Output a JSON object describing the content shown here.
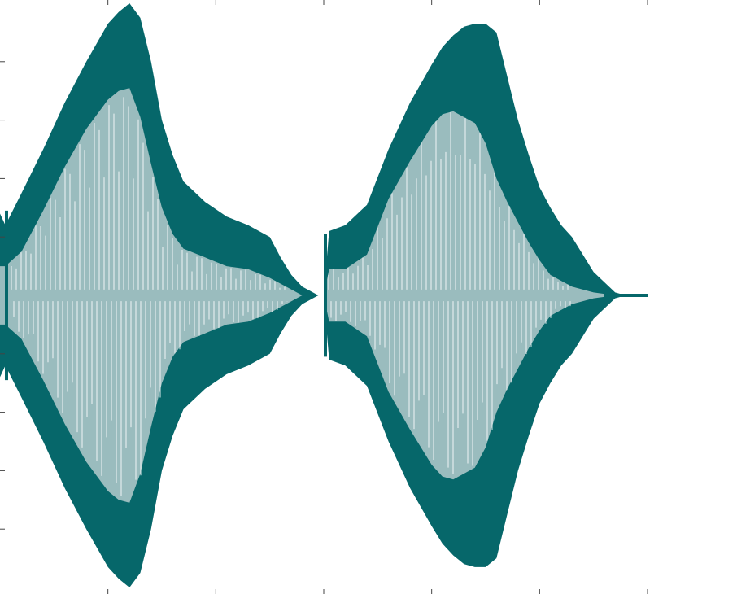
{
  "chart_data": {
    "type": "area",
    "title": "",
    "xlabel": "",
    "ylabel": "",
    "grid": false,
    "legend": "none",
    "xlim": [
      0,
      6
    ],
    "ylim": [
      -1,
      1
    ],
    "x_ticks": [
      1,
      2,
      3,
      4,
      5,
      6
    ],
    "y_ticks": [
      -0.8,
      -0.6,
      -0.4,
      -0.2,
      0.2,
      0.4,
      0.6,
      0.8
    ],
    "colors": {
      "outer": "#06676a",
      "inner": "#9abcbe",
      "background": "#ffffff"
    },
    "series": [
      {
        "role": "outer-envelope",
        "x": [
          0,
          0.05,
          0.2,
          0.4,
          0.6,
          0.8,
          1.0,
          1.1,
          1.2,
          1.3,
          1.4,
          1.5,
          1.6,
          1.7,
          1.9,
          2.1,
          2.3,
          2.5,
          2.6,
          2.7,
          2.8,
          2.9,
          2.95,
          3.0,
          3.05,
          3.2,
          3.4,
          3.6,
          3.8,
          4.0,
          4.1,
          4.2,
          4.3,
          4.4,
          4.5,
          4.6,
          4.7,
          4.8,
          4.9,
          5.0,
          5.1,
          5.2,
          5.3,
          5.5,
          5.7,
          5.8,
          6.0
        ],
        "values": [
          0.28,
          0.24,
          0.35,
          0.5,
          0.66,
          0.8,
          0.93,
          0.97,
          1.0,
          0.95,
          0.8,
          0.6,
          0.48,
          0.39,
          0.32,
          0.27,
          0.24,
          0.2,
          0.13,
          0.07,
          0.03,
          0.01,
          0.0,
          0.0,
          0.22,
          0.24,
          0.31,
          0.5,
          0.66,
          0.79,
          0.85,
          0.89,
          0.92,
          0.93,
          0.93,
          0.9,
          0.75,
          0.6,
          0.48,
          0.37,
          0.3,
          0.24,
          0.2,
          0.08,
          0.01,
          0.0,
          0.0
        ]
      },
      {
        "role": "inner-envelope",
        "x": [
          0,
          0.05,
          0.2,
          0.4,
          0.6,
          0.8,
          1.0,
          1.1,
          1.2,
          1.3,
          1.4,
          1.5,
          1.6,
          1.7,
          1.9,
          2.1,
          2.3,
          2.5,
          2.6,
          2.7,
          2.8,
          2.9,
          2.95,
          3.0,
          3.05,
          3.2,
          3.4,
          3.6,
          3.8,
          4.0,
          4.1,
          4.2,
          4.3,
          4.4,
          4.5,
          4.6,
          4.7,
          4.8,
          4.9,
          5.0,
          5.1,
          5.2,
          5.3,
          5.5,
          5.7,
          5.8,
          6.0
        ],
        "values": [
          0.1,
          0.1,
          0.15,
          0.29,
          0.44,
          0.57,
          0.67,
          0.7,
          0.71,
          0.61,
          0.45,
          0.3,
          0.21,
          0.16,
          0.13,
          0.1,
          0.09,
          0.06,
          0.04,
          0.02,
          0.0,
          0.0,
          0.0,
          0.0,
          0.09,
          0.09,
          0.14,
          0.33,
          0.46,
          0.58,
          0.62,
          0.63,
          0.61,
          0.59,
          0.52,
          0.4,
          0.32,
          0.25,
          0.18,
          0.12,
          0.07,
          0.05,
          0.03,
          0.01,
          0.0,
          0.0,
          0.0
        ]
      }
    ]
  }
}
